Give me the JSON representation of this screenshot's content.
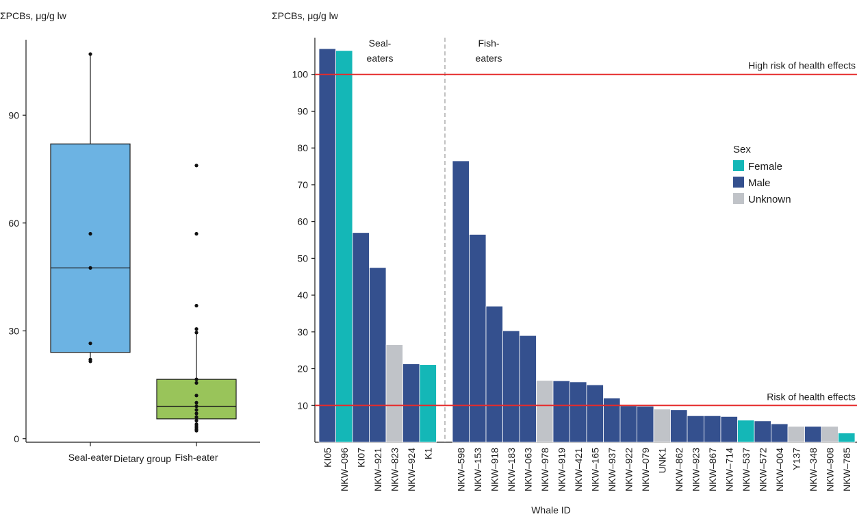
{
  "colors": {
    "seal_box": "#6cb3e3",
    "fish_box": "#99c45a",
    "female": "#14b7b7",
    "male": "#34508e",
    "unknown": "#c0c3c8",
    "risk_line": "#e52b2b",
    "axis": "#1a1a1a",
    "divider": "#9a9a9a"
  },
  "chart_data": [
    {
      "type": "box",
      "ylabel": "ΣPCBs, μg/g lw",
      "xlabel": "Dietary group",
      "ylim": [
        -1,
        111
      ],
      "yticks": [
        0,
        30,
        60,
        90
      ],
      "groups": [
        {
          "label": "Seal-eater",
          "color_key": "seal_box",
          "whisker_low": 22.5,
          "q1": 24,
          "median": 47.5,
          "q3": 82,
          "whisker_high": 107,
          "points": [
            107,
            57,
            47.5,
            26.5,
            22,
            21.5
          ]
        },
        {
          "label": "Fish-eater",
          "color_key": "fish_box",
          "whisker_low": 2.2,
          "q1": 5.5,
          "median": 9,
          "q3": 16.5,
          "whisker_high": 29,
          "points": [
            76,
            57,
            37,
            30.5,
            29.5,
            16.5,
            15.5,
            12,
            10,
            9,
            8,
            7,
            6,
            5,
            4,
            3.5,
            3,
            2.5,
            2.2
          ]
        }
      ]
    },
    {
      "type": "bar",
      "ylabel": "ΣPCBs, μg/g lw",
      "xlabel": "Whale ID",
      "ylim": [
        0,
        110
      ],
      "yticks": [
        10,
        20,
        30,
        40,
        50,
        60,
        70,
        80,
        90,
        100
      ],
      "group_labels": [
        {
          "text": [
            "Seal-",
            "eaters"
          ],
          "group": "seal"
        },
        {
          "text": [
            "Fish-",
            "eaters"
          ],
          "group": "fish"
        }
      ],
      "thresholds": [
        {
          "value": 100,
          "label": "High risk of health effects"
        },
        {
          "value": 10,
          "label": "Risk of health effects"
        }
      ],
      "legend": {
        "title": "Sex",
        "entries": [
          {
            "label": "Female",
            "color_key": "female"
          },
          {
            "label": "Male",
            "color_key": "male"
          },
          {
            "label": "Unknown",
            "color_key": "unknown"
          }
        ]
      },
      "bars": [
        {
          "id": "KI05",
          "value": 107,
          "sex": "male",
          "group": "seal"
        },
        {
          "id": "NKW–096",
          "value": 106.5,
          "sex": "female",
          "group": "seal"
        },
        {
          "id": "KI07",
          "value": 57,
          "sex": "male",
          "group": "seal"
        },
        {
          "id": "NKW–921",
          "value": 47.5,
          "sex": "male",
          "group": "seal"
        },
        {
          "id": "NKW–823",
          "value": 26.5,
          "sex": "unknown",
          "group": "seal"
        },
        {
          "id": "NKW–924",
          "value": 21.3,
          "sex": "male",
          "group": "seal"
        },
        {
          "id": "K1",
          "value": 21.1,
          "sex": "female",
          "group": "seal"
        },
        {
          "id": "NKW–598",
          "value": 76.5,
          "sex": "male",
          "group": "fish"
        },
        {
          "id": "NKW–153",
          "value": 56.5,
          "sex": "male",
          "group": "fish"
        },
        {
          "id": "NKW–918",
          "value": 37,
          "sex": "male",
          "group": "fish"
        },
        {
          "id": "NKW–183",
          "value": 30.3,
          "sex": "male",
          "group": "fish"
        },
        {
          "id": "NKW–063",
          "value": 29,
          "sex": "male",
          "group": "fish"
        },
        {
          "id": "NKW–978",
          "value": 16.8,
          "sex": "unknown",
          "group": "fish"
        },
        {
          "id": "NKW–919",
          "value": 16.7,
          "sex": "male",
          "group": "fish"
        },
        {
          "id": "NKW–421",
          "value": 16.4,
          "sex": "male",
          "group": "fish"
        },
        {
          "id": "NKW–165",
          "value": 15.6,
          "sex": "male",
          "group": "fish"
        },
        {
          "id": "NKW–937",
          "value": 12,
          "sex": "male",
          "group": "fish"
        },
        {
          "id": "NKW–922",
          "value": 9.9,
          "sex": "male",
          "group": "fish"
        },
        {
          "id": "NKW–079",
          "value": 9.8,
          "sex": "male",
          "group": "fish"
        },
        {
          "id": "UNK1",
          "value": 9,
          "sex": "unknown",
          "group": "fish"
        },
        {
          "id": "NKW–862",
          "value": 8.8,
          "sex": "male",
          "group": "fish"
        },
        {
          "id": "NKW–923",
          "value": 7.2,
          "sex": "male",
          "group": "fish"
        },
        {
          "id": "NKW–867",
          "value": 7.2,
          "sex": "male",
          "group": "fish"
        },
        {
          "id": "NKW–714",
          "value": 7,
          "sex": "male",
          "group": "fish"
        },
        {
          "id": "NKW–537",
          "value": 6,
          "sex": "female",
          "group": "fish"
        },
        {
          "id": "NKW–572",
          "value": 5.8,
          "sex": "male",
          "group": "fish"
        },
        {
          "id": "NKW–004",
          "value": 5,
          "sex": "male",
          "group": "fish"
        },
        {
          "id": "Y137",
          "value": 4.3,
          "sex": "unknown",
          "group": "fish"
        },
        {
          "id": "NKW–348",
          "value": 4.3,
          "sex": "male",
          "group": "fish"
        },
        {
          "id": "NKW–908",
          "value": 4.3,
          "sex": "unknown",
          "group": "fish"
        },
        {
          "id": "NKW–785",
          "value": 2.5,
          "sex": "female",
          "group": "fish"
        }
      ]
    }
  ]
}
